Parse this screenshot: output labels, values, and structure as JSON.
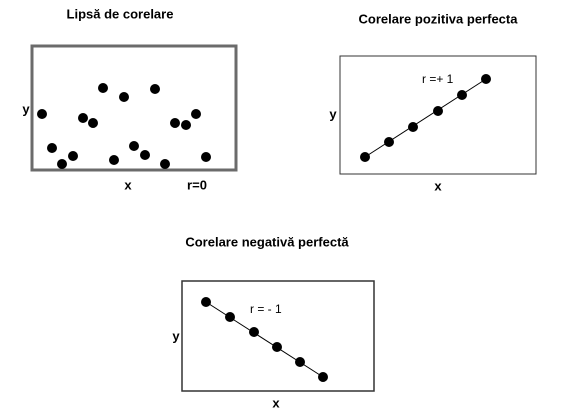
{
  "panels": [
    {
      "title": "Lipsă de corelare",
      "y_label": "y",
      "x_label": "x",
      "r_label": "r=0"
    },
    {
      "title": "Corelare pozitiva perfecta",
      "y_label": "y",
      "x_label": "x",
      "r_label": "r =+ 1"
    },
    {
      "title": "Corelare negativă perfectă",
      "y_label": "y",
      "x_label": "x",
      "r_label": "r = - 1"
    }
  ]
}
